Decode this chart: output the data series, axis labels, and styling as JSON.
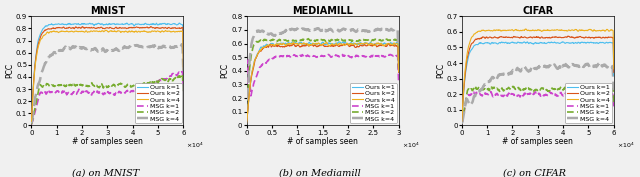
{
  "title_fontsize": 7,
  "label_fontsize": 5.5,
  "tick_fontsize": 5,
  "legend_fontsize": 4.5,
  "caption_fontsize": 7,
  "mnist": {
    "title": "MNIST",
    "xlabel": "# of samples seen",
    "ylabel": "PCC",
    "xlim": [
      0,
      60000.0
    ],
    "ylim": [
      0,
      0.9
    ],
    "xticks": [
      0,
      10000.0,
      20000.0,
      30000.0,
      40000.0,
      50000.0,
      60000.0
    ],
    "xtick_labels": [
      "0",
      "1",
      "2",
      "3",
      "4",
      "5",
      "6"
    ],
    "yticks": [
      0,
      0.1,
      0.2,
      0.3,
      0.4,
      0.5,
      0.6,
      0.7,
      0.8,
      0.9
    ],
    "ytick_labels": [
      "0",
      "0.1",
      "0.2",
      "0.3",
      "0.4",
      "0.5",
      "0.6",
      "0.7",
      "0.8",
      "0.9"
    ],
    "caption": "(a) on MNIST"
  },
  "mediamill": {
    "title": "MEDIAMILL",
    "xlabel": "# of samples seen",
    "ylabel": "PCC",
    "xlim": [
      0,
      30000.0
    ],
    "ylim": [
      0,
      0.8
    ],
    "xticks": [
      0,
      5000.0,
      10000.0,
      15000.0,
      20000.0,
      25000.0,
      30000.0
    ],
    "xtick_labels": [
      "0",
      "0.5",
      "1",
      "1.5",
      "2",
      "2.5",
      "3"
    ],
    "yticks": [
      0,
      0.1,
      0.2,
      0.3,
      0.4,
      0.5,
      0.6,
      0.7,
      0.8
    ],
    "ytick_labels": [
      "0",
      "0.1",
      "0.2",
      "0.3",
      "0.4",
      "0.5",
      "0.6",
      "0.7",
      "0.8"
    ],
    "caption": "(b) on Mediamill"
  },
  "cifar": {
    "title": "CIFAR",
    "xlabel": "# of samples seen",
    "ylabel": "PCC",
    "xlim": [
      0,
      60000.0
    ],
    "ylim": [
      0,
      0.7
    ],
    "xticks": [
      0,
      10000.0,
      20000.0,
      30000.0,
      40000.0,
      50000.0,
      60000.0
    ],
    "xtick_labels": [
      "0",
      "1",
      "2",
      "3",
      "4",
      "5",
      "6"
    ],
    "yticks": [
      0,
      0.1,
      0.2,
      0.3,
      0.4,
      0.5,
      0.6,
      0.7
    ],
    "ytick_labels": [
      "0",
      "0.1",
      "0.2",
      "0.3",
      "0.4",
      "0.5",
      "0.6",
      "0.7"
    ],
    "caption": "(c) on CIFAR"
  },
  "colors": {
    "ours_k1": "#4dbeee",
    "ours_k2": "#d95319",
    "ours_k4": "#edb120",
    "msg_k1": "#cc44cc",
    "msg_k2": "#77ac30",
    "msg_k4": "#aaaaaa"
  },
  "legend_labels": [
    "Ours k=1",
    "Ours k=2",
    "Ours k=4",
    "MSG k=1",
    "MSG k=2",
    "MSG k=4"
  ]
}
